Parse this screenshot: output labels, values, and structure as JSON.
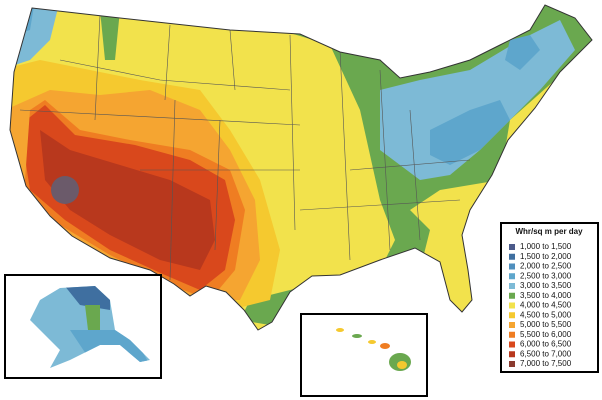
{
  "legend": {
    "title": "Whr/sq m per day",
    "items": [
      {
        "label": "1,000 to 1,500",
        "color": "#4b5a8a"
      },
      {
        "label": "1,500 to 2,000",
        "color": "#3f6fa0"
      },
      {
        "label": "2,000 to 2,500",
        "color": "#4f8fbe"
      },
      {
        "label": "2,500 to 3,000",
        "color": "#5ea6cc"
      },
      {
        "label": "3,000 to 3,500",
        "color": "#7dbad6"
      },
      {
        "label": "3,500 to 4,000",
        "color": "#6aa84f"
      },
      {
        "label": "4,000 to 4,500",
        "color": "#f2e24c"
      },
      {
        "label": "4,500 to 5,000",
        "color": "#f5c92f"
      },
      {
        "label": "5,000 to 5,500",
        "color": "#f5a531"
      },
      {
        "label": "5,500 to 6,000",
        "color": "#ef7d22"
      },
      {
        "label": "6,000 to 6,500",
        "color": "#d9481c"
      },
      {
        "label": "6,500 to 7,000",
        "color": "#b8381d"
      },
      {
        "label": "7,000 to 7,500",
        "color": "#8b3a2e"
      }
    ]
  }
}
